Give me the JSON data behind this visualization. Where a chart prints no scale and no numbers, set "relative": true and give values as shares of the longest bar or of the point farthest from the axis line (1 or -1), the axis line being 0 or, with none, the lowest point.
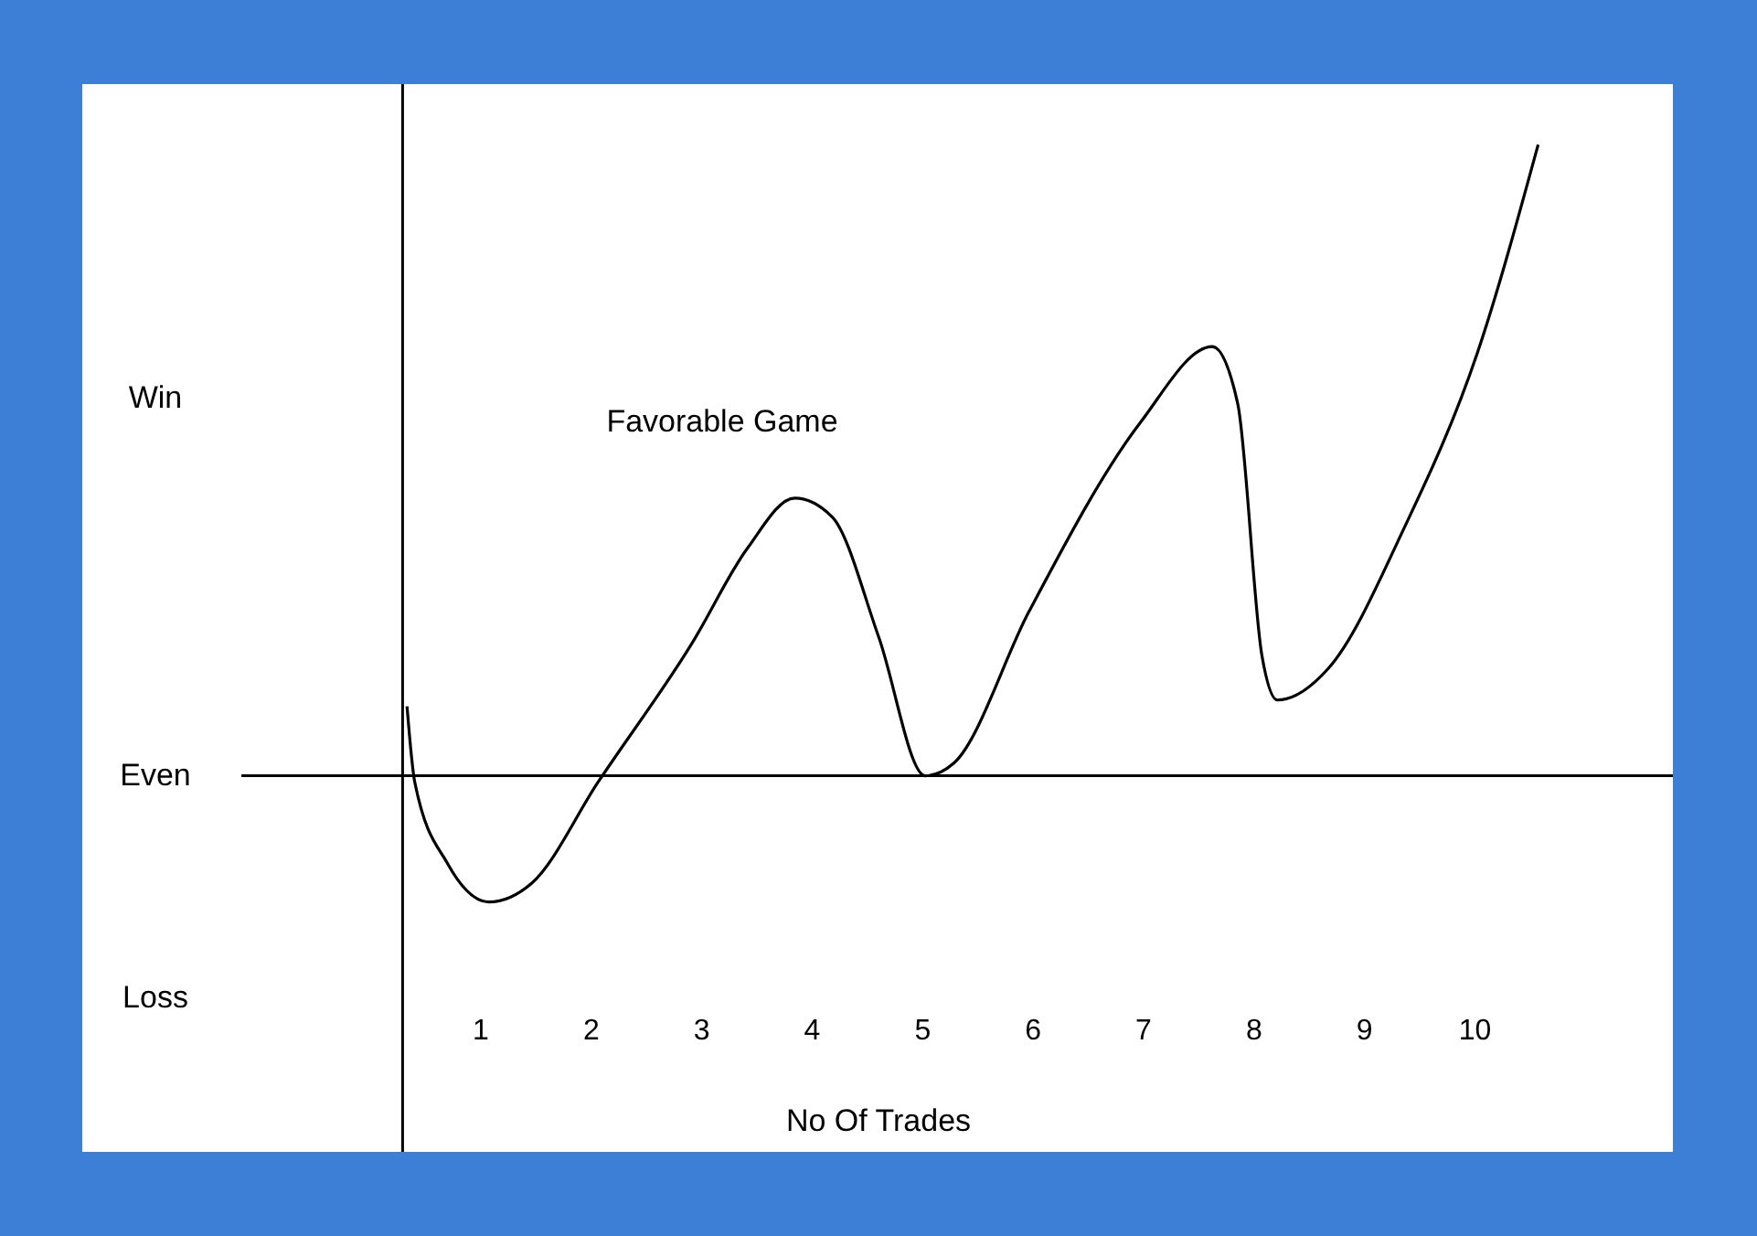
{
  "chart_data": {
    "type": "line",
    "relative": true,
    "xlabel": "No Of Trades",
    "x": [
      0.34,
      0.41,
      0.71,
      1.08,
      1.47,
      2.07,
      2.92,
      3.42,
      3.85,
      4.19,
      4.61,
      5.03,
      5.29,
      5.97,
      6.98,
      7.63,
      7.86,
      8.08,
      8.22,
      8.68,
      9.36,
      10.03,
      10.58
    ],
    "series": [
      {
        "color": "#000000",
        "values": [
          0.11,
          -0.01,
          -0.14,
          -0.2,
          -0.17,
          -0.01,
          0.21,
          0.36,
          0.44,
          0.41,
          0.22,
          0,
          0.02,
          0.26,
          0.56,
          0.68,
          0.59,
          0.19,
          0.12,
          0.17,
          0.39,
          0.67,
          1.0
        ]
      }
    ],
    "xlim": [
      -2.6,
      11.8
    ],
    "xticks": [
      1,
      2,
      3,
      4,
      5,
      6,
      7,
      8,
      9,
      10
    ],
    "ref_lines": [
      {
        "axis": "y",
        "value": 0
      },
      {
        "axis": "x",
        "value": 0.3
      }
    ],
    "annotations": [
      "Win",
      "Even",
      "Loss",
      "Favorable Game"
    ],
    "tick_labels": "x"
  }
}
